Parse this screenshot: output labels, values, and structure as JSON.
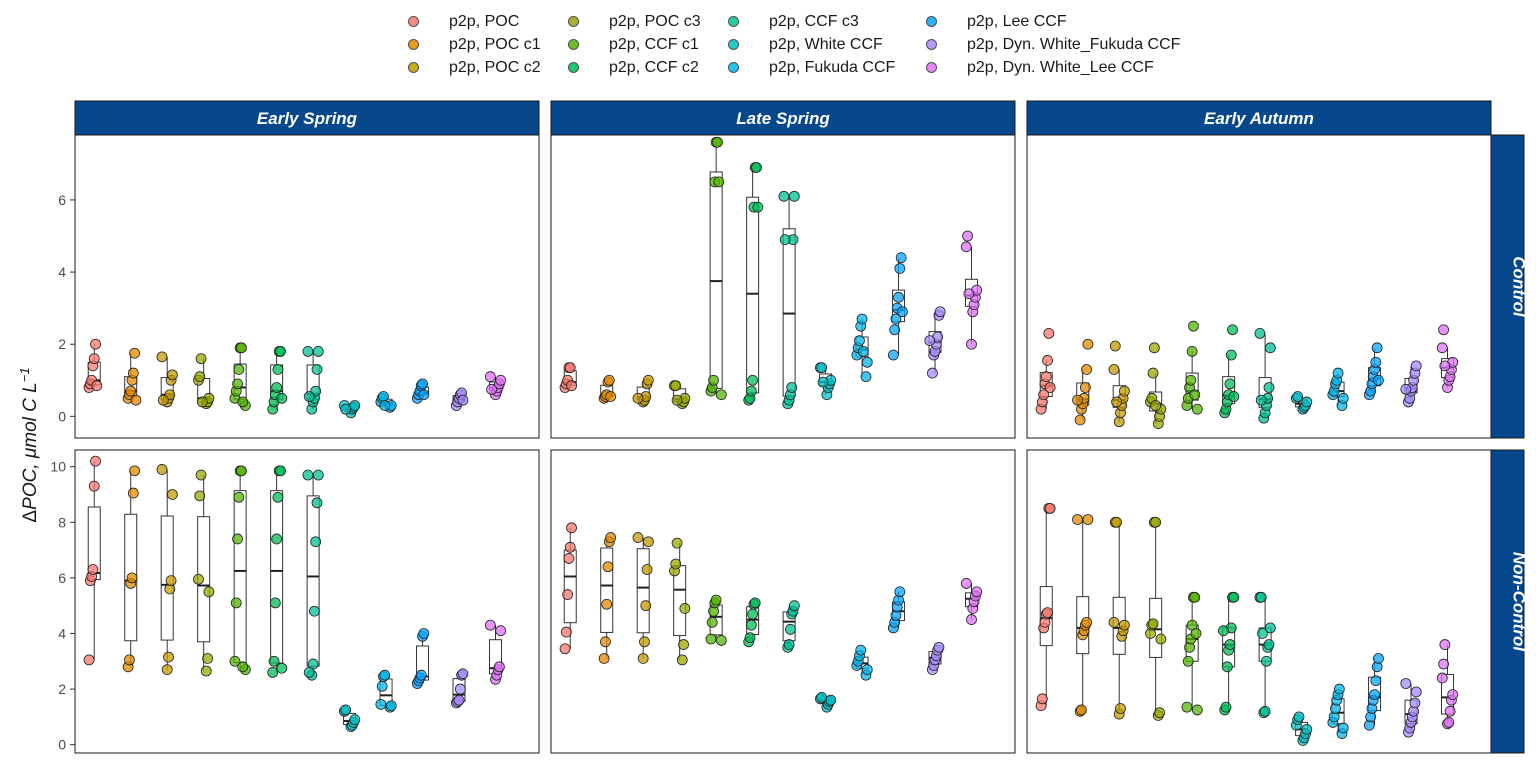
{
  "chart_data": {
    "type": "scatter",
    "subtype": "jittered points with boxplots, faceted grid",
    "ylabel_parts": [
      "Δ",
      "POC, μmol C L",
      "−1"
    ],
    "legend_position": "top",
    "grid": false,
    "columns": [
      "Early Spring",
      "Late Spring",
      "Early Autumn"
    ],
    "rows": [
      "Control",
      "Non-Control"
    ],
    "row_ylim": [
      [
        -0.6,
        7.8
      ],
      [
        -0.3,
        10.6
      ]
    ],
    "row_yticks": [
      [
        0,
        2,
        4,
        6
      ],
      [
        0,
        2,
        4,
        6,
        8,
        10
      ]
    ],
    "series": [
      {
        "name": "p2p, POC",
        "color": "#F8766D"
      },
      {
        "name": "p2p, POC c1",
        "color": "#E38900"
      },
      {
        "name": "p2p, POC c2",
        "color": "#C49A00"
      },
      {
        "name": "p2p, POC c3",
        "color": "#99A800"
      },
      {
        "name": "p2p, CCF c1",
        "color": "#53B400"
      },
      {
        "name": "p2p, CCF c2",
        "color": "#00BC56"
      },
      {
        "name": "p2p, CCF c3",
        "color": "#00C094"
      },
      {
        "name": "p2p, White CCF",
        "color": "#00BFC4"
      },
      {
        "name": "p2p, Fukuda CCF",
        "color": "#00B6EB"
      },
      {
        "name": "p2p, Lee CCF",
        "color": "#06A4FF"
      },
      {
        "name": "p2p, Dyn. White_Fukuda CCF",
        "color": "#A58AFF"
      },
      {
        "name": "p2p, Dyn. White_Lee CCF",
        "color": "#DF70F8"
      }
    ],
    "panels": [
      {
        "column": "Early Spring",
        "row": "Control",
        "groups": [
          [
            0.8,
            0.9,
            1.0,
            1.4,
            1.6,
            2.0,
            0.85
          ],
          [
            0.5,
            0.6,
            0.7,
            1.0,
            1.2,
            1.75,
            0.45
          ],
          [
            0.4,
            0.5,
            0.6,
            1.0,
            1.15,
            1.65,
            0.45
          ],
          [
            0.35,
            0.4,
            0.5,
            1.0,
            1.1,
            1.6,
            0.4
          ],
          [
            0.3,
            0.5,
            0.7,
            0.9,
            1.3,
            1.9,
            1.9,
            0.4
          ],
          [
            0.2,
            0.4,
            0.6,
            0.8,
            1.3,
            1.8,
            1.8,
            0.5
          ],
          [
            0.2,
            0.4,
            0.5,
            0.7,
            1.3,
            1.8,
            1.8,
            0.55
          ],
          [
            0.1,
            0.2,
            0.25,
            0.3,
            0.3,
            0.2
          ],
          [
            0.25,
            0.3,
            0.4,
            0.5,
            0.55,
            0.3
          ],
          [
            0.5,
            0.6,
            0.7,
            0.85,
            0.9,
            0.6
          ],
          [
            0.3,
            0.4,
            0.5,
            0.6,
            0.65,
            0.45
          ],
          [
            0.6,
            0.7,
            0.8,
            0.9,
            1.0,
            1.1,
            0.75
          ]
        ]
      },
      {
        "column": "Late Spring",
        "row": "Control",
        "groups": [
          [
            0.8,
            0.9,
            1.0,
            1.35,
            1.35,
            0.85
          ],
          [
            0.5,
            0.55,
            0.6,
            0.95,
            1.0,
            0.55
          ],
          [
            0.4,
            0.45,
            0.55,
            0.9,
            1.0,
            0.5
          ],
          [
            0.35,
            0.4,
            0.5,
            0.85,
            0.85,
            0.45
          ],
          [
            0.6,
            0.7,
            0.8,
            1.0,
            6.5,
            7.6,
            7.6,
            6.5
          ],
          [
            0.45,
            0.5,
            0.7,
            1.0,
            5.8,
            6.9,
            6.9,
            5.8
          ],
          [
            0.35,
            0.45,
            0.6,
            0.8,
            4.9,
            6.1,
            6.1,
            4.9
          ],
          [
            0.6,
            0.8,
            0.9,
            1.0,
            1.35,
            1.35,
            0.95
          ],
          [
            1.1,
            1.5,
            1.7,
            1.9,
            2.1,
            2.5,
            2.7,
            1.8
          ],
          [
            1.7,
            2.4,
            2.7,
            3.0,
            3.3,
            4.1,
            4.4,
            2.9
          ],
          [
            1.2,
            1.7,
            1.8,
            2.0,
            2.2,
            2.8,
            2.9,
            2.1
          ],
          [
            2.0,
            2.9,
            3.1,
            3.3,
            3.5,
            4.7,
            5.0,
            3.4
          ]
        ]
      },
      {
        "column": "Early Autumn",
        "row": "Control",
        "groups": [
          [
            0.2,
            0.4,
            0.6,
            0.9,
            1.1,
            1.55,
            2.3,
            0.8
          ],
          [
            -0.1,
            0.2,
            0.35,
            0.5,
            0.8,
            1.3,
            2.0,
            0.45
          ],
          [
            -0.15,
            0.1,
            0.3,
            0.5,
            0.7,
            1.3,
            1.95,
            0.4
          ],
          [
            -0.2,
            0.0,
            0.2,
            0.4,
            0.5,
            1.2,
            1.9,
            0.3
          ],
          [
            0.2,
            0.3,
            0.5,
            0.8,
            1.0,
            1.8,
            2.5,
            0.6
          ],
          [
            0.1,
            0.2,
            0.4,
            0.6,
            0.9,
            1.7,
            2.4,
            0.55
          ],
          [
            -0.05,
            0.1,
            0.3,
            0.5,
            0.8,
            1.9,
            2.3,
            0.45
          ],
          [
            0.2,
            0.25,
            0.3,
            0.4,
            0.5,
            0.55
          ],
          [
            0.3,
            0.5,
            0.6,
            0.7,
            0.9,
            1.0,
            1.2
          ],
          [
            0.6,
            0.7,
            0.9,
            1.1,
            1.3,
            1.5,
            1.9,
            1.0
          ],
          [
            0.4,
            0.5,
            0.7,
            0.8,
            1.0,
            1.2,
            1.4,
            0.75
          ],
          [
            0.8,
            1.0,
            1.1,
            1.3,
            1.5,
            1.9,
            2.4,
            1.4
          ]
        ]
      },
      {
        "column": "Early Spring",
        "row": "Non-Control",
        "groups": [
          [
            3.05,
            5.9,
            6.05,
            6.3,
            9.3,
            10.2
          ],
          [
            2.8,
            3.05,
            5.8,
            6.0,
            9.05,
            9.85
          ],
          [
            2.7,
            3.15,
            5.6,
            5.9,
            9.0,
            9.9
          ],
          [
            2.65,
            3.1,
            5.5,
            5.95,
            8.95,
            9.7
          ],
          [
            2.7,
            3.0,
            5.1,
            7.4,
            8.9,
            9.85,
            9.85,
            2.8
          ],
          [
            2.6,
            3.0,
            5.1,
            7.4,
            8.9,
            9.85,
            9.85,
            2.75
          ],
          [
            2.5,
            2.9,
            4.8,
            7.3,
            8.7,
            9.7,
            9.7,
            2.6
          ],
          [
            0.65,
            0.7,
            0.8,
            0.9,
            1.2,
            1.25
          ],
          [
            1.35,
            1.4,
            1.45,
            2.1,
            2.45,
            2.5
          ],
          [
            2.2,
            2.3,
            2.4,
            2.5,
            3.9,
            4.0
          ],
          [
            1.5,
            1.55,
            1.6,
            2.0,
            2.5,
            2.55
          ],
          [
            2.35,
            2.5,
            2.7,
            2.8,
            4.1,
            4.3
          ]
        ]
      },
      {
        "column": "Late Spring",
        "row": "Non-Control",
        "groups": [
          [
            3.45,
            4.05,
            5.4,
            6.7,
            7.1,
            7.8
          ],
          [
            3.1,
            3.7,
            5.05,
            6.4,
            7.3,
            7.45
          ],
          [
            3.1,
            3.7,
            5.0,
            6.3,
            7.3,
            7.45
          ],
          [
            3.05,
            3.6,
            4.9,
            6.25,
            6.5,
            7.25
          ],
          [
            3.75,
            3.8,
            4.4,
            4.8,
            5.1,
            5.2
          ],
          [
            3.7,
            3.85,
            4.3,
            4.7,
            5.05,
            5.1
          ],
          [
            3.5,
            3.6,
            4.15,
            4.7,
            4.8,
            5.0
          ],
          [
            1.35,
            1.45,
            1.55,
            1.6,
            1.65,
            1.7
          ],
          [
            2.5,
            2.7,
            2.85,
            3.0,
            3.2,
            3.4
          ],
          [
            4.2,
            4.4,
            4.65,
            4.95,
            5.2,
            5.5
          ],
          [
            2.7,
            2.85,
            3.05,
            3.2,
            3.4,
            3.5
          ],
          [
            4.5,
            4.9,
            5.15,
            5.35,
            5.5,
            5.8
          ]
        ]
      },
      {
        "column": "Early Autumn",
        "row": "Non-Control",
        "groups": [
          [
            1.4,
            1.65,
            4.2,
            4.4,
            4.7,
            4.75,
            8.5,
            8.5
          ],
          [
            1.2,
            1.25,
            3.95,
            4.1,
            4.3,
            4.4,
            8.1,
            8.1
          ],
          [
            1.1,
            1.3,
            3.9,
            4.1,
            4.3,
            4.4,
            8.0,
            8.0
          ],
          [
            1.05,
            1.15,
            3.8,
            4.0,
            4.3,
            4.35,
            8.0,
            8.0
          ],
          [
            1.25,
            1.35,
            3.0,
            3.5,
            3.8,
            4.3,
            5.3,
            5.3,
            4.0
          ],
          [
            1.25,
            1.35,
            2.8,
            3.4,
            3.6,
            4.2,
            5.3,
            5.3,
            4.1
          ],
          [
            1.15,
            1.2,
            3.0,
            3.5,
            3.6,
            4.2,
            5.3,
            5.3,
            4.0
          ],
          [
            0.15,
            0.25,
            0.4,
            0.55,
            0.7,
            0.9,
            1.0
          ],
          [
            0.4,
            0.6,
            0.8,
            1.0,
            1.3,
            1.6,
            1.8,
            2.0
          ],
          [
            0.7,
            1.0,
            1.3,
            1.6,
            1.8,
            2.3,
            2.8,
            3.1
          ],
          [
            0.45,
            0.6,
            0.8,
            1.0,
            1.2,
            1.5,
            1.9,
            2.2
          ],
          [
            0.75,
            0.8,
            1.2,
            1.6,
            1.8,
            2.4,
            2.9,
            3.6
          ]
        ]
      }
    ]
  }
}
